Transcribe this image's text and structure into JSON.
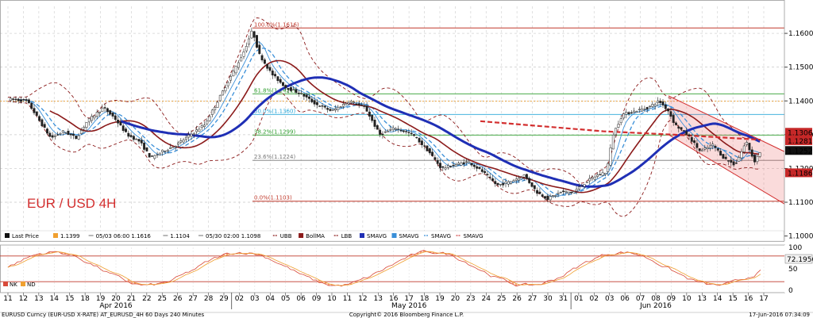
{
  "chart_data": {
    "type": "candlestick",
    "instrument_label": "EUR / USD 4H",
    "y_axis": {
      "ticks": [
        "1.1600",
        "1.1500",
        "1.1400",
        "1.1300",
        "1.1200",
        "1.1100",
        "1.1000"
      ],
      "range": [
        1.0985,
        1.168
      ]
    },
    "price_badges": [
      {
        "label": "1.1306",
        "value": 1.1306,
        "color": "#c62828"
      },
      {
        "label": "1.1281",
        "value": 1.1281,
        "color": "#c62828"
      },
      {
        "label": "1.1252",
        "value": 1.1252,
        "color": "#111111"
      },
      {
        "label": "1.1186",
        "value": 1.1186,
        "color": "#c62828"
      }
    ],
    "fibonacci": [
      {
        "label": "100.0%(1.1616)",
        "value": 1.1616,
        "color": "#c0392b"
      },
      {
        "label": "61.8%(1.1421)",
        "value": 1.1421,
        "color": "#2e9e2e"
      },
      {
        "label": "50.0%(1.1360)",
        "value": 1.136,
        "color": "#2aa7d8"
      },
      {
        "label": "38.2%(1.1299)",
        "value": 1.1299,
        "color": "#2e9e2e"
      },
      {
        "label": "23.6%(1.1224)",
        "value": 1.1224,
        "color": "#777777"
      },
      {
        "label": "0.0%(1.1103)",
        "value": 1.1103,
        "color": "#c0392b"
      }
    ],
    "legend": [
      {
        "label": "Last Price",
        "color": "#111111",
        "kind": "box"
      },
      {
        "label": "1.1399",
        "color": "#f0a030",
        "kind": "box"
      },
      {
        "label": "05/03 06:00 1.1616",
        "color": "#888888",
        "kind": "line"
      },
      {
        "label": "1.1104",
        "color": "#888888",
        "kind": "line"
      },
      {
        "label": "05/30 02:00 1.1098",
        "color": "#888888",
        "kind": "line"
      },
      {
        "label": "UBB",
        "color": "#8b1a1a",
        "kind": "dash"
      },
      {
        "label": "BollMA",
        "color": "#8b1a1a",
        "kind": "box"
      },
      {
        "label": "LBB",
        "color": "#8b1a1a",
        "kind": "dash"
      },
      {
        "label": "SMAVG",
        "color": "#1f2fb5",
        "kind": "box"
      },
      {
        "label": "SMAVG",
        "color": "#3a8fd8",
        "kind": "box"
      },
      {
        "label": "SMAVG",
        "color": "#3a8fd8",
        "kind": "dash"
      },
      {
        "label": "SMAVG",
        "color": "#d04040",
        "kind": "dash"
      }
    ],
    "x_ticks": [
      "11",
      "12",
      "13",
      "14",
      "15",
      "18",
      "19",
      "20",
      "21",
      "22",
      "25",
      "26",
      "27",
      "28",
      "29",
      "02",
      "03",
      "04",
      "05",
      "06",
      "09",
      "10",
      "11",
      "12",
      "13",
      "16",
      "17",
      "18",
      "19",
      "20",
      "23",
      "24",
      "25",
      "26",
      "27",
      "30",
      "31",
      "01",
      "02",
      "03",
      "06",
      "07",
      "08",
      "09",
      "10",
      "13",
      "14",
      "15",
      "16",
      "17"
    ],
    "month_labels": [
      {
        "label": "Apr 2016",
        "at_index": 7
      },
      {
        "label": "May 2016",
        "at_index": 26
      },
      {
        "label": "Jun 2016",
        "at_index": 42
      }
    ],
    "indicator": {
      "ticks": [
        "100",
        "50",
        "0"
      ],
      "range": [
        0,
        100
      ],
      "badge": "72.1956",
      "levels": [
        80,
        20
      ],
      "legend": [
        {
          "label": "NK",
          "color": "#d84a3a"
        },
        {
          "label": "ND",
          "color": "#f0a030"
        }
      ]
    }
  },
  "footer": {
    "left": "EURUSD Curncy (EUR-USD X-RATE) AT_EURUSD_4H 60 Days 240 Minutes",
    "center": "Copyright© 2016 Bloomberg Finance L.P.",
    "right": "17-Jun-2016 07:34:09"
  }
}
